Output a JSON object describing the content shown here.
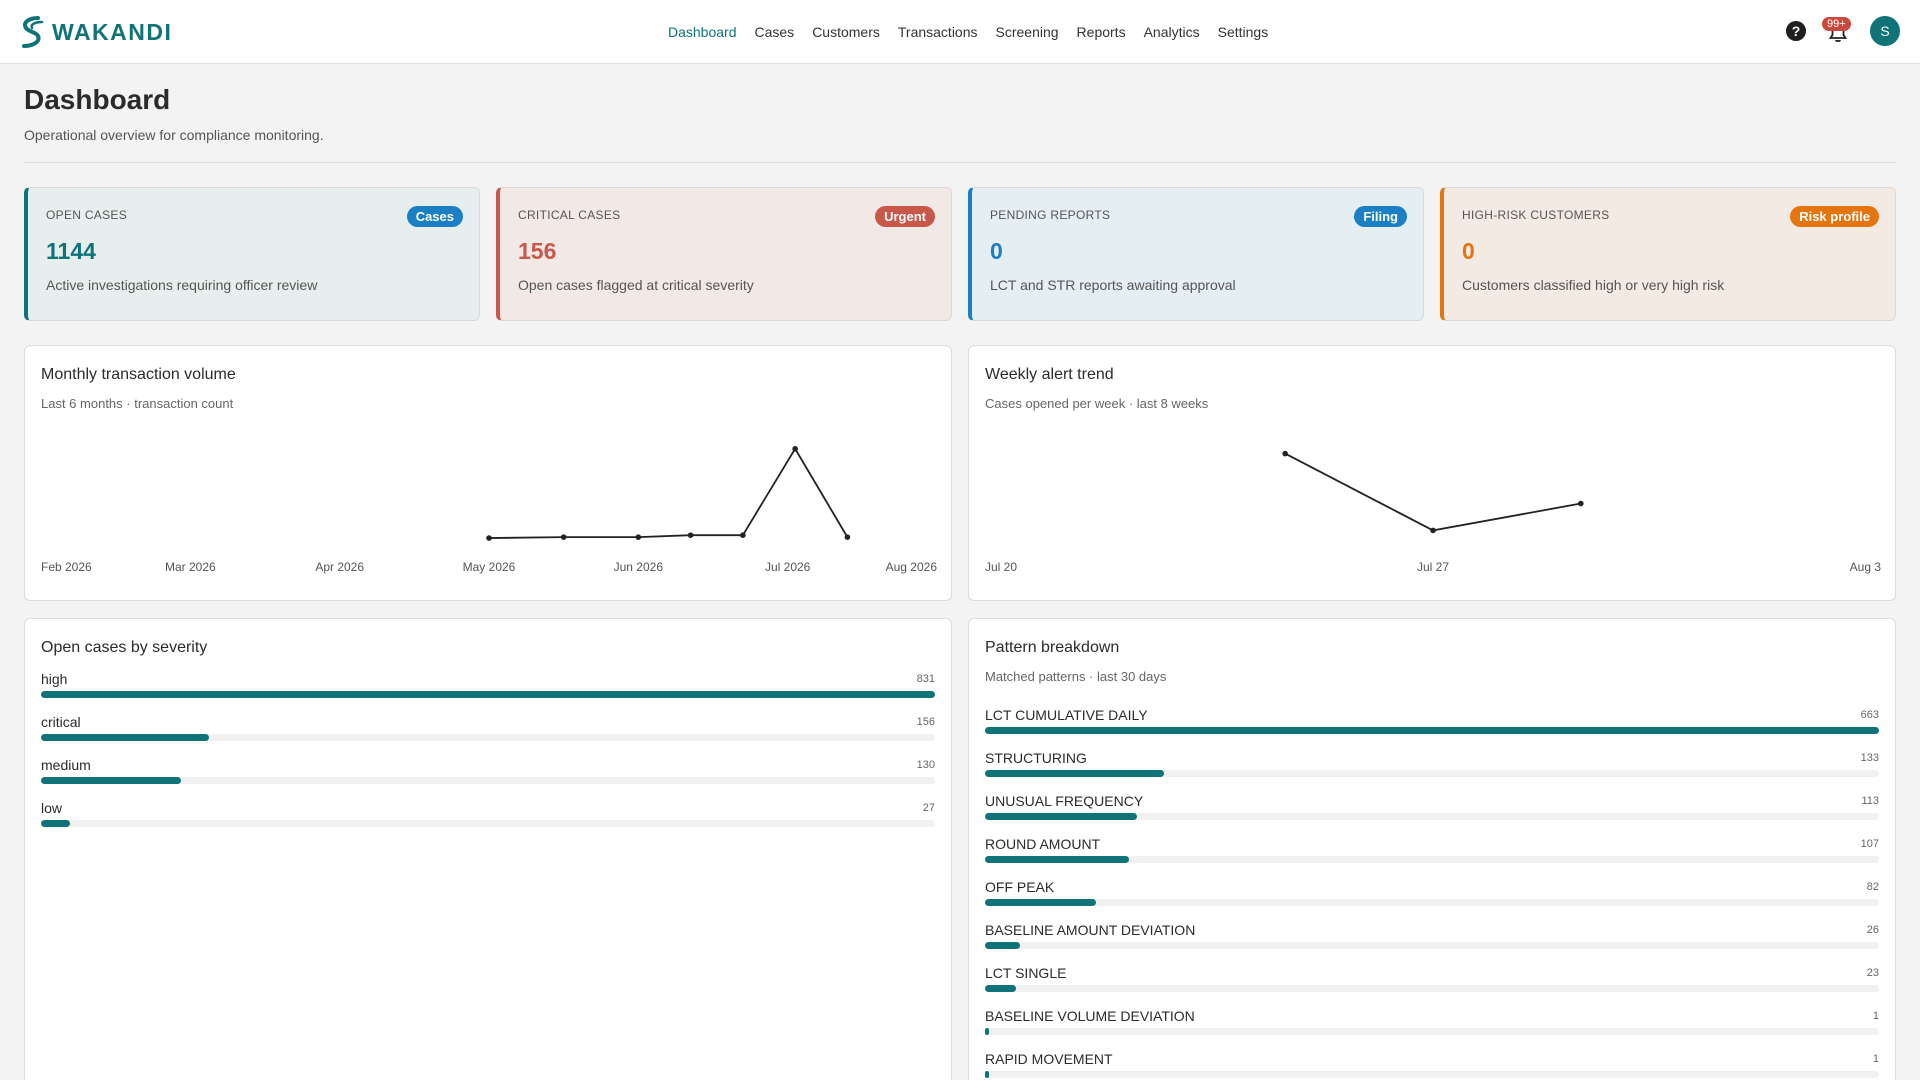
{
  "brand": {
    "name": "WAKANDI"
  },
  "nav": {
    "items": [
      "Dashboard",
      "Cases",
      "Customers",
      "Transactions",
      "Screening",
      "Reports",
      "Analytics",
      "Settings"
    ],
    "active": "Dashboard"
  },
  "topbar": {
    "notification_badge": "99+",
    "avatar_initial": "S",
    "help_icon": "question-circle-icon",
    "bell_icon": "bell-icon"
  },
  "header": {
    "title": "Dashboard",
    "subtitle": "Operational overview for compliance monitoring."
  },
  "kpis": [
    {
      "label": "OPEN CASES",
      "tag": "Cases",
      "value": "1144",
      "desc": "Active investigations requiring officer review",
      "accent": "#0f7377",
      "tag_color": "#1a7fc4",
      "bg": "#e7efee"
    },
    {
      "label": "CRITICAL CASES",
      "tag": "Urgent",
      "value": "156",
      "desc": "Open cases flagged at critical severity",
      "accent": "#c9584a",
      "tag_color": "#c9584a",
      "bg": "#f2e9e7"
    },
    {
      "label": "PENDING REPORTS",
      "tag": "Filing",
      "value": "0",
      "desc": "LCT and STR reports awaiting approval",
      "accent": "#1a7fc4",
      "tag_color": "#1a7fc4",
      "bg": "#e5eef3"
    },
    {
      "label": "HIGH-RISK CUSTOMERS",
      "tag": "Risk profile",
      "value": "0",
      "desc": "Customers classified high or very high risk",
      "accent": "#e5750f",
      "tag_color": "#e5750f",
      "bg": "#f3eae4"
    }
  ],
  "panels": {
    "monthly": {
      "title": "Monthly transaction volume",
      "subtitle": "Last 6 months · transaction count"
    },
    "weekly": {
      "title": "Weekly alert trend",
      "subtitle": "Cases opened per week · last 8 weeks"
    },
    "severity": {
      "title": "Open cases by severity"
    },
    "patterns": {
      "title": "Pattern breakdown",
      "subtitle": "Matched patterns · last 30 days"
    }
  },
  "chart_data": [
    {
      "type": "line",
      "title": "Monthly transaction volume",
      "x_ticks": [
        "Feb 2026",
        "Mar 2026",
        "Apr 2026",
        "May 2026",
        "Jun 2026",
        "Jul 2026",
        "Aug 2026"
      ],
      "x": [
        3.0,
        3.5,
        4.0,
        4.35,
        4.7,
        5.05
      ],
      "y": [
        2,
        3,
        3,
        5,
        5,
        95
      ],
      "y_end": 3,
      "x_end": 5.4
    },
    {
      "type": "line",
      "title": "Weekly alert trend",
      "x_ticks": [
        "Jul 20",
        "Jul 27",
        "Aug 3"
      ],
      "x": [
        0.67,
        1.0,
        1.33
      ],
      "y": [
        90,
        10,
        38
      ]
    },
    {
      "type": "bar",
      "title": "Open cases by severity",
      "categories": [
        "high",
        "critical",
        "medium",
        "low"
      ],
      "values": [
        831,
        156,
        130,
        27
      ]
    },
    {
      "type": "bar",
      "title": "Pattern breakdown",
      "categories": [
        "LCT CUMULATIVE DAILY",
        "STRUCTURING",
        "UNUSUAL FREQUENCY",
        "ROUND AMOUNT",
        "OFF PEAK",
        "BASELINE AMOUNT DEVIATION",
        "LCT SINGLE",
        "BASELINE VOLUME DEVIATION",
        "RAPID MOVEMENT"
      ],
      "values": [
        663,
        133,
        113,
        107,
        82,
        26,
        23,
        1,
        1
      ]
    }
  ]
}
